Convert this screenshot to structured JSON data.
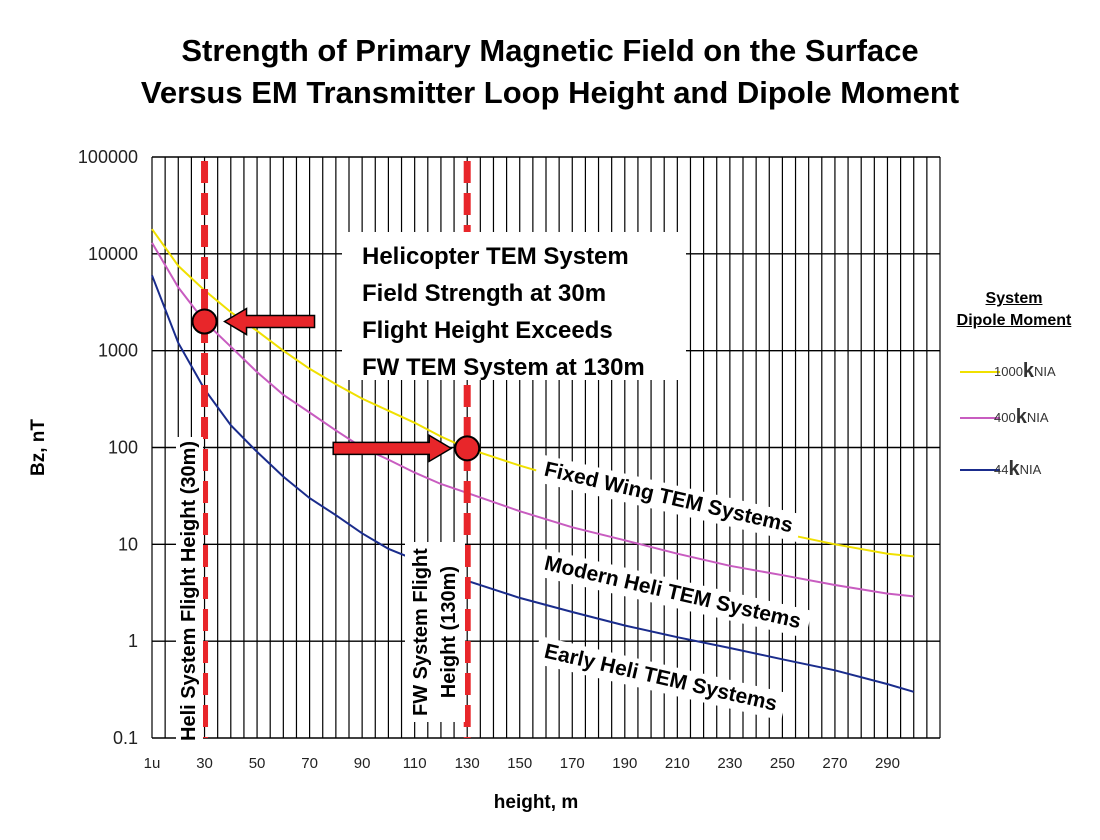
{
  "title_lines": [
    "Strength of Primary Magnetic Field on the Surface",
    "Versus EM Transmitter Loop Height and Dipole Moment"
  ],
  "chart_data": {
    "type": "line",
    "title": "Strength of Primary Magnetic Field on the Surface Versus EM Transmitter Loop Height and Dipole Moment",
    "xlabel": "height, m",
    "ylabel": "Bz, nT",
    "xlim": [
      10,
      310
    ],
    "ylim": [
      0.1,
      100000
    ],
    "yscale": "log",
    "grid": true,
    "x_ticks": [
      "1u",
      "30",
      "50",
      "70",
      "90",
      "110",
      "130",
      "150",
      "170",
      "190",
      "210",
      "230",
      "250",
      "270",
      "290"
    ],
    "y_ticks": [
      "100000",
      "10000",
      "1000",
      "100",
      "10",
      "1",
      "0.1"
    ],
    "series": [
      {
        "name": "1000kNIA",
        "color": "#f0e000",
        "x": [
          10,
          20,
          30,
          40,
          50,
          60,
          70,
          80,
          90,
          100,
          110,
          120,
          130,
          150,
          170,
          190,
          210,
          230,
          250,
          270,
          290,
          300
        ],
        "y": [
          18000,
          7500,
          4200,
          2500,
          1600,
          1000,
          650,
          450,
          320,
          240,
          180,
          130,
          98,
          65,
          45,
          32,
          24,
          18,
          13,
          10,
          8,
          7.5
        ]
      },
      {
        "name": "400kNIA",
        "color": "#c85cc0",
        "x": [
          10,
          20,
          30,
          40,
          50,
          60,
          70,
          80,
          90,
          100,
          110,
          120,
          130,
          150,
          170,
          190,
          210,
          230,
          250,
          270,
          290,
          300
        ],
        "y": [
          13000,
          4500,
          2000,
          1100,
          600,
          350,
          230,
          150,
          100,
          75,
          55,
          42,
          34,
          22,
          15,
          11,
          8,
          6,
          4.8,
          3.8,
          3.1,
          2.9
        ]
      },
      {
        "name": "44kNIA",
        "color": "#1a2c8c",
        "x": [
          10,
          20,
          30,
          40,
          50,
          60,
          70,
          80,
          90,
          100,
          130,
          150,
          170,
          190,
          210,
          230,
          250,
          270,
          290,
          300
        ],
        "y": [
          6000,
          1200,
          400,
          170,
          90,
          50,
          30,
          20,
          13,
          9,
          4.2,
          2.8,
          2.0,
          1.45,
          1.1,
          0.85,
          0.65,
          0.5,
          0.36,
          0.3
        ]
      }
    ],
    "vlines": [
      30,
      130
    ],
    "markers": [
      {
        "x": 30,
        "y": 2000
      },
      {
        "x": 130,
        "y": 98
      }
    ]
  },
  "callouts": {
    "heli_box_lines": [
      "Helicopter TEM System",
      "Field Strength at 30m",
      "Flight Height Exceeds",
      "FW TEM System at 130m"
    ],
    "fixed_wing": "Fixed Wing TEM Systems",
    "modern_heli": "Modern Heli TEM Systems",
    "early_heli": "Early Heli TEM Systems",
    "heli_height": "Heli System Flight Height (30m)",
    "fw_height_line1": "FW System Flight",
    "fw_height_line2": "Height (130m)"
  },
  "legend": {
    "title_line1": "System",
    "title_line2": "Dipole Moment",
    "items": [
      {
        "prefix": "1000",
        "k": "k",
        "suffix": "NIA",
        "color": "#f0e000"
      },
      {
        "prefix": "400",
        "k": "k",
        "suffix": "NIA",
        "color": "#c85cc0"
      },
      {
        "prefix": "44",
        "k": "k",
        "suffix": "NIA",
        "color": "#1a2c8c"
      }
    ]
  }
}
